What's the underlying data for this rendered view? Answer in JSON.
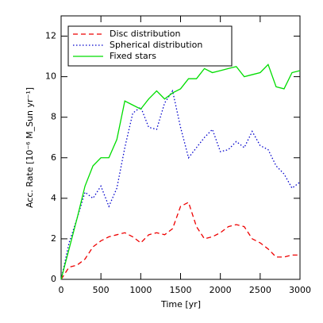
{
  "chart_data": {
    "type": "line",
    "xlabel": "Time [yr]",
    "ylabel": "Acc. Rate [10⁻⁶ M_Sun yr⁻¹]",
    "x": [
      0,
      100,
      200,
      300,
      400,
      500,
      600,
      700,
      800,
      900,
      1000,
      1100,
      1200,
      1300,
      1400,
      1500,
      1600,
      1700,
      1800,
      1900,
      2000,
      2100,
      2200,
      2300,
      2400,
      2500,
      2600,
      2700,
      2800,
      2900,
      3000
    ],
    "series": [
      {
        "name": "Disc distribution",
        "color": "#ee0000",
        "style": "dashed",
        "values": [
          0,
          0.6,
          0.7,
          1.0,
          1.6,
          1.9,
          2.1,
          2.2,
          2.3,
          2.1,
          1.8,
          2.2,
          2.3,
          2.2,
          2.5,
          3.6,
          3.8,
          2.6,
          2.0,
          2.1,
          2.3,
          2.6,
          2.7,
          2.6,
          2.0,
          1.8,
          1.5,
          1.1,
          1.1,
          1.2,
          1.2
        ]
      },
      {
        "name": "Spherical distribution",
        "color": "#0000cc",
        "style": "dotted",
        "values": [
          0,
          1.8,
          3.0,
          4.3,
          4.0,
          4.6,
          3.6,
          4.5,
          6.5,
          8.2,
          8.5,
          7.5,
          7.4,
          8.7,
          9.3,
          7.5,
          6.0,
          6.5,
          7.0,
          7.4,
          6.3,
          6.4,
          6.8,
          6.5,
          7.3,
          6.6,
          6.4,
          5.6,
          5.2,
          4.5,
          4.8
        ]
      },
      {
        "name": "Fixed stars",
        "color": "#00dd00",
        "style": "solid",
        "values": [
          0,
          1.5,
          3.0,
          4.6,
          5.6,
          6.0,
          6.0,
          6.9,
          8.8,
          8.6,
          8.4,
          8.9,
          9.3,
          8.9,
          9.2,
          9.4,
          9.9,
          9.9,
          10.4,
          10.2,
          10.3,
          10.4,
          10.5,
          10.0,
          10.1,
          10.2,
          10.6,
          9.5,
          9.4,
          10.2,
          10.3
        ]
      }
    ],
    "xlim": [
      0,
      3000
    ],
    "xticks": [
      0,
      500,
      1000,
      1500,
      2000,
      2500,
      3000
    ],
    "ylim": [
      0,
      13
    ],
    "yticks": [
      0,
      2,
      4,
      6,
      8,
      10,
      12
    ],
    "legend": "upper left"
  }
}
